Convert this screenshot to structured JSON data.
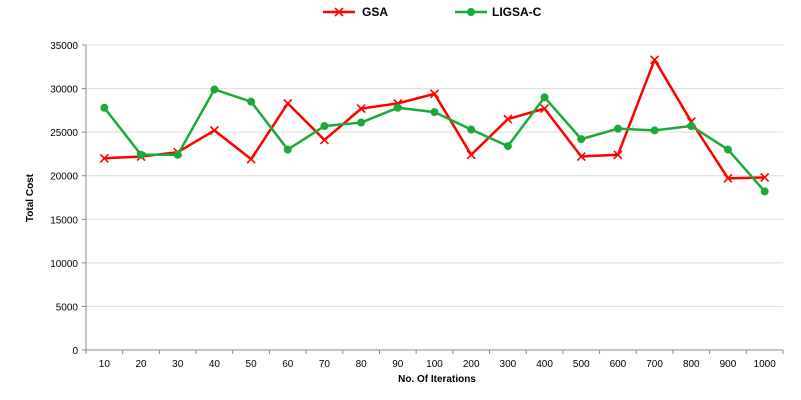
{
  "chart_data": {
    "type": "line",
    "title": "",
    "xlabel": "No. Of Iterations",
    "ylabel": "Total Cost",
    "ylim": [
      0,
      35000
    ],
    "yticks": [
      0,
      5000,
      10000,
      15000,
      20000,
      25000,
      30000,
      35000
    ],
    "grid": "horizontal",
    "legend_position": "top-center",
    "categories": [
      "10",
      "20",
      "30",
      "40",
      "50",
      "60",
      "70",
      "80",
      "90",
      "100",
      "200",
      "300",
      "400",
      "500",
      "600",
      "700",
      "800",
      "900",
      "1000"
    ],
    "series": [
      {
        "name": "GSA",
        "color": "#ff0000",
        "marker": "x",
        "values": [
          22000,
          22200,
          22700,
          25200,
          21900,
          28300,
          24100,
          27700,
          28300,
          29400,
          22400,
          26500,
          27700,
          22200,
          22400,
          33300,
          26200,
          19700,
          19800
        ]
      },
      {
        "name": "LIGSA-C",
        "color": "#1aaa3a",
        "marker": "circle",
        "values": [
          27800,
          22400,
          22400,
          29900,
          28500,
          23000,
          25700,
          26100,
          27800,
          27300,
          25300,
          23400,
          29000,
          24200,
          25400,
          25200,
          25700,
          23000,
          18200
        ]
      }
    ]
  }
}
